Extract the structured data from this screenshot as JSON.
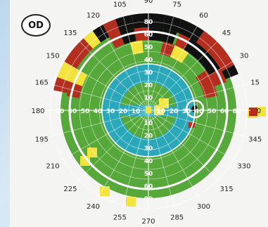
{
  "eye_label": "OD",
  "meridian_labels": [
    "0",
    "15",
    "30",
    "45",
    "60",
    "75",
    "90",
    "105",
    "120",
    "135",
    "150",
    "165",
    "180",
    "195",
    "210",
    "225",
    "240",
    "255",
    "270",
    "285",
    "300",
    "315",
    "330",
    "345"
  ],
  "ring_labels": [
    "10",
    "20",
    "30",
    "40",
    "50",
    "60",
    "80"
  ],
  "colors": {
    "normal": "#56a83a",
    "mild": "#f3e33d",
    "moderate": "#b32e1f",
    "absolute": "#111111",
    "central": "#2aa7b8",
    "background": "#f4f4f2"
  }
}
